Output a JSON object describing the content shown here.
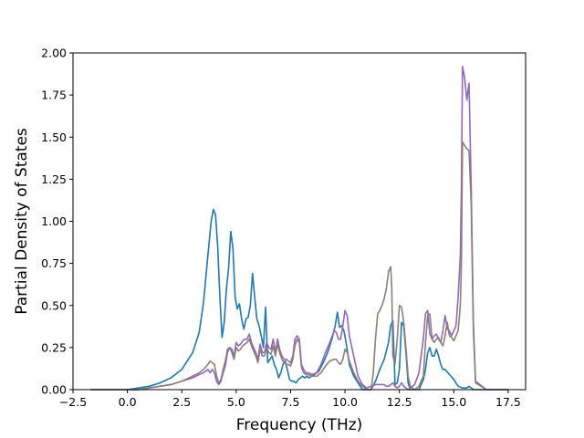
{
  "chart_data": {
    "type": "line",
    "title": "",
    "xlabel": "Frequency (THz)",
    "ylabel": "Partial Density of States",
    "xlim": [
      -2.5,
      18.3
    ],
    "ylim": [
      0.0,
      2.0
    ],
    "grid": false,
    "xticks": [
      "−2.5",
      "0.0",
      "2.5",
      "5.0",
      "7.5",
      "10.0",
      "12.5",
      "15.0",
      "17.5"
    ],
    "xtick_values": [
      -2.5,
      0.0,
      2.5,
      5.0,
      7.5,
      10.0,
      12.5,
      15.0,
      17.5
    ],
    "yticks": [
      "0.00",
      "0.25",
      "0.50",
      "0.75",
      "1.00",
      "1.25",
      "1.50",
      "1.75",
      "2.00"
    ],
    "ytick_values": [
      0.0,
      0.25,
      0.5,
      0.75,
      1.0,
      1.25,
      1.5,
      1.75,
      2.0
    ],
    "series": [
      {
        "color": "#1f77b4",
        "x": [
          -1.7,
          0.0,
          0.5,
          1.0,
          1.5,
          2.0,
          2.5,
          3.0,
          3.3,
          3.5,
          3.7,
          3.85,
          3.95,
          4.05,
          4.15,
          4.25,
          4.35,
          4.45,
          4.55,
          4.65,
          4.75,
          4.85,
          4.95,
          5.05,
          5.15,
          5.25,
          5.35,
          5.45,
          5.55,
          5.65,
          5.75,
          5.85,
          5.95,
          6.05,
          6.15,
          6.25,
          6.35,
          6.45,
          6.55,
          6.65,
          6.75,
          6.85,
          6.95,
          7.05,
          7.15,
          7.25,
          7.35,
          7.45,
          7.55,
          7.65,
          7.75,
          7.85,
          7.95,
          8.05,
          8.15,
          8.25,
          8.35,
          8.45,
          8.6,
          8.8,
          9.0,
          9.2,
          9.4,
          9.55,
          9.65,
          9.75,
          9.85,
          9.95,
          10.05,
          10.2,
          10.4,
          10.6,
          10.8,
          11.0,
          11.2,
          11.4,
          11.6,
          11.8,
          12.0,
          12.1,
          12.2,
          12.3,
          12.4,
          12.5,
          12.6,
          12.7,
          12.8,
          12.9,
          13.0,
          13.2,
          13.4,
          13.6,
          13.7,
          13.8,
          13.9,
          14.0,
          14.1,
          14.2,
          14.3,
          14.4,
          14.5,
          14.6,
          14.8,
          15.0,
          15.2,
          15.4,
          15.5,
          15.6,
          15.7,
          15.8,
          15.9,
          16.0,
          16.2,
          16.5,
          17.0,
          17.5
        ],
        "y": [
          0.0,
          0.0,
          0.01,
          0.02,
          0.04,
          0.07,
          0.12,
          0.22,
          0.34,
          0.52,
          0.8,
          1.0,
          1.07,
          1.04,
          0.85,
          0.55,
          0.31,
          0.4,
          0.6,
          0.72,
          0.94,
          0.84,
          0.55,
          0.48,
          0.51,
          0.42,
          0.36,
          0.42,
          0.43,
          0.5,
          0.69,
          0.55,
          0.42,
          0.38,
          0.32,
          0.25,
          0.49,
          0.16,
          0.18,
          0.2,
          0.15,
          0.12,
          0.07,
          0.1,
          0.15,
          0.17,
          0.12,
          0.06,
          0.05,
          0.05,
          0.04,
          0.06,
          0.07,
          0.08,
          0.07,
          0.08,
          0.07,
          0.08,
          0.09,
          0.11,
          0.16,
          0.22,
          0.3,
          0.38,
          0.46,
          0.37,
          0.38,
          0.35,
          0.28,
          0.15,
          0.08,
          0.04,
          0.0,
          0.0,
          0.0,
          0.05,
          0.12,
          0.18,
          0.28,
          0.38,
          0.41,
          0.03,
          0.04,
          0.12,
          0.4,
          0.38,
          0.22,
          0.04,
          0.0,
          0.0,
          0.0,
          0.06,
          0.12,
          0.22,
          0.25,
          0.2,
          0.2,
          0.24,
          0.2,
          0.15,
          0.12,
          0.12,
          0.09,
          0.06,
          0.02,
          0.01,
          0.01,
          0.01,
          0.02,
          0.01,
          0.0,
          0.0,
          0.0,
          0.0,
          0.0,
          0.0
        ]
      },
      {
        "color": "#9467bd",
        "x": [
          -1.7,
          0.0,
          0.5,
          1.0,
          1.5,
          2.0,
          2.5,
          3.0,
          3.3,
          3.5,
          3.7,
          3.8,
          3.9,
          4.0,
          4.1,
          4.2,
          4.3,
          4.4,
          4.5,
          4.6,
          4.7,
          4.8,
          4.9,
          5.0,
          5.1,
          5.2,
          5.3,
          5.4,
          5.5,
          5.6,
          5.7,
          5.8,
          5.9,
          6.0,
          6.1,
          6.2,
          6.3,
          6.4,
          6.5,
          6.6,
          6.7,
          6.8,
          6.9,
          7.0,
          7.1,
          7.2,
          7.3,
          7.4,
          7.5,
          7.6,
          7.7,
          7.8,
          7.9,
          8.0,
          8.1,
          8.2,
          8.3,
          8.5,
          8.7,
          8.9,
          9.1,
          9.3,
          9.5,
          9.6,
          9.7,
          9.8,
          9.9,
          10.0,
          10.1,
          10.2,
          10.4,
          10.6,
          10.8,
          11.0,
          11.2,
          11.4,
          11.6,
          11.8,
          11.9,
          12.0,
          12.1,
          12.2,
          12.3,
          12.4,
          12.5,
          12.6,
          12.7,
          12.8,
          12.9,
          13.0,
          13.2,
          13.4,
          13.6,
          13.7,
          13.8,
          13.9,
          14.0,
          14.1,
          14.2,
          14.3,
          14.4,
          14.5,
          14.6,
          14.7,
          14.8,
          14.9,
          15.0,
          15.1,
          15.2,
          15.3,
          15.35,
          15.4,
          15.5,
          15.6,
          15.7,
          15.8,
          15.9,
          16.0,
          16.5,
          17.0,
          17.5
        ],
        "y": [
          0.0,
          0.0,
          0.0,
          0.01,
          0.02,
          0.03,
          0.05,
          0.07,
          0.09,
          0.1,
          0.12,
          0.1,
          0.12,
          0.1,
          0.05,
          0.03,
          0.05,
          0.1,
          0.14,
          0.22,
          0.25,
          0.24,
          0.2,
          0.28,
          0.26,
          0.27,
          0.29,
          0.3,
          0.3,
          0.33,
          0.28,
          0.25,
          0.22,
          0.18,
          0.27,
          0.22,
          0.22,
          0.28,
          0.25,
          0.24,
          0.3,
          0.22,
          0.3,
          0.24,
          0.2,
          0.18,
          0.18,
          0.17,
          0.16,
          0.2,
          0.3,
          0.32,
          0.3,
          0.15,
          0.12,
          0.1,
          0.1,
          0.09,
          0.1,
          0.15,
          0.22,
          0.28,
          0.35,
          0.34,
          0.3,
          0.3,
          0.38,
          0.47,
          0.44,
          0.32,
          0.2,
          0.08,
          0.03,
          0.01,
          0.02,
          0.03,
          0.03,
          0.03,
          0.02,
          0.02,
          0.03,
          0.04,
          0.02,
          0.01,
          0.02,
          0.04,
          0.02,
          0.01,
          0.0,
          0.01,
          0.03,
          0.1,
          0.3,
          0.45,
          0.47,
          0.33,
          0.3,
          0.32,
          0.33,
          0.3,
          0.28,
          0.35,
          0.44,
          0.36,
          0.35,
          0.32,
          0.35,
          0.38,
          0.55,
          0.8,
          1.2,
          1.92,
          1.85,
          1.72,
          1.82,
          1.2,
          0.4,
          0.05,
          0.0,
          0.0,
          0.0
        ]
      },
      {
        "color": "#8c7f7a",
        "x": [
          -1.7,
          0.0,
          0.5,
          1.0,
          1.5,
          2.0,
          2.5,
          3.0,
          3.3,
          3.5,
          3.7,
          3.8,
          3.9,
          4.0,
          4.1,
          4.2,
          4.3,
          4.4,
          4.5,
          4.6,
          4.7,
          4.8,
          4.9,
          5.0,
          5.1,
          5.2,
          5.3,
          5.4,
          5.5,
          5.6,
          5.7,
          5.8,
          5.9,
          6.0,
          6.1,
          6.2,
          6.3,
          6.4,
          6.5,
          6.6,
          6.7,
          6.8,
          6.9,
          7.0,
          7.1,
          7.2,
          7.3,
          7.4,
          7.5,
          7.6,
          7.7,
          7.8,
          7.9,
          8.0,
          8.1,
          8.2,
          8.3,
          8.5,
          8.7,
          8.9,
          9.1,
          9.3,
          9.5,
          9.6,
          9.7,
          9.8,
          9.9,
          10.0,
          10.1,
          10.2,
          10.4,
          10.6,
          10.8,
          11.0,
          11.2,
          11.3,
          11.4,
          11.5,
          11.6,
          11.7,
          11.8,
          11.9,
          12.0,
          12.1,
          12.15,
          12.2,
          12.3,
          12.4,
          12.5,
          12.6,
          12.7,
          12.8,
          12.9,
          13.0,
          13.2,
          13.4,
          13.6,
          13.7,
          13.8,
          13.9,
          14.0,
          14.1,
          14.2,
          14.3,
          14.4,
          14.5,
          14.6,
          14.7,
          14.8,
          14.9,
          15.0,
          15.1,
          15.2,
          15.3,
          15.35,
          15.4,
          15.5,
          15.6,
          15.7,
          15.8,
          15.9,
          16.0,
          16.5,
          17.0,
          17.5
        ],
        "y": [
          0.0,
          0.0,
          0.0,
          0.01,
          0.02,
          0.03,
          0.05,
          0.08,
          0.1,
          0.12,
          0.15,
          0.17,
          0.16,
          0.15,
          0.08,
          0.04,
          0.06,
          0.12,
          0.17,
          0.24,
          0.25,
          0.22,
          0.18,
          0.25,
          0.23,
          0.24,
          0.26,
          0.27,
          0.28,
          0.3,
          0.26,
          0.23,
          0.2,
          0.16,
          0.24,
          0.2,
          0.2,
          0.25,
          0.22,
          0.21,
          0.26,
          0.2,
          0.27,
          0.22,
          0.18,
          0.16,
          0.15,
          0.15,
          0.14,
          0.18,
          0.26,
          0.3,
          0.28,
          0.13,
          0.1,
          0.09,
          0.09,
          0.08,
          0.08,
          0.1,
          0.14,
          0.17,
          0.18,
          0.18,
          0.16,
          0.15,
          0.18,
          0.24,
          0.22,
          0.17,
          0.1,
          0.05,
          0.02,
          0.0,
          0.0,
          0.1,
          0.3,
          0.45,
          0.47,
          0.5,
          0.54,
          0.6,
          0.7,
          0.73,
          0.6,
          0.2,
          0.15,
          0.3,
          0.5,
          0.49,
          0.4,
          0.25,
          0.08,
          0.02,
          0.0,
          0.02,
          0.08,
          0.28,
          0.44,
          0.45,
          0.3,
          0.28,
          0.3,
          0.31,
          0.28,
          0.26,
          0.32,
          0.4,
          0.32,
          0.31,
          0.29,
          0.32,
          0.35,
          0.5,
          0.75,
          1.47,
          1.45,
          1.43,
          1.42,
          1.1,
          0.35,
          0.04,
          0.0,
          0.0,
          0.0
        ]
      }
    ]
  }
}
